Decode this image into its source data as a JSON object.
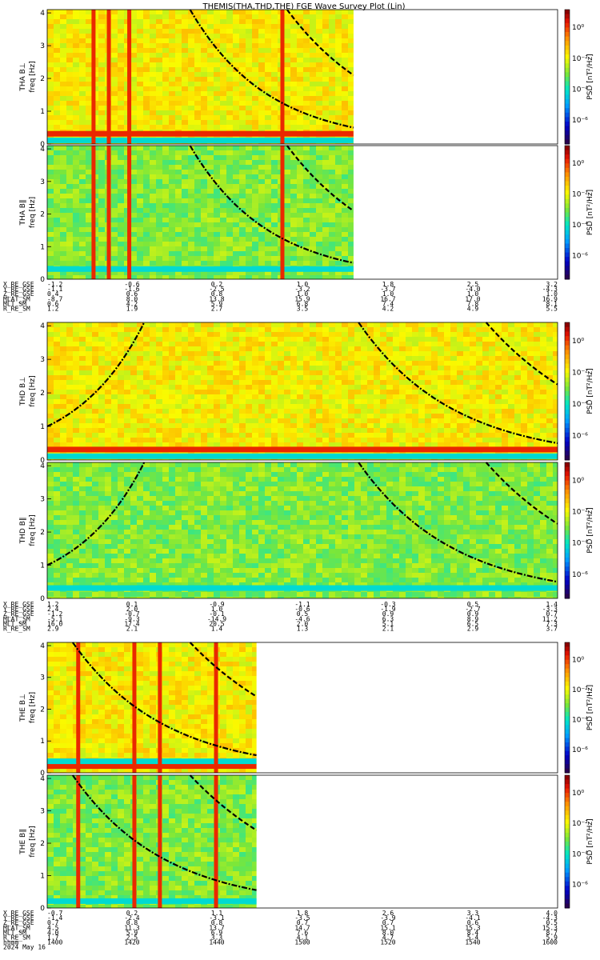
{
  "title": "THEMIS(THA,THD,THE) FGE Wave Survey Plot (Lin)",
  "footer": {
    "time_label": "hhmm",
    "date_label": "2024 May 16"
  },
  "colorbar_label": "PSD [nT²/Hz]",
  "colors": {
    "background": "#ffffff",
    "curve": "#000000",
    "noData": "#ffffff"
  },
  "panels": [
    {
      "id": "tha-bl",
      "probe": "THA",
      "ylabel": "THA B⊥",
      "yunit": "freq [Hz]",
      "yticks": [
        "0",
        "1",
        "2",
        "3",
        "4"
      ],
      "cbar_ticks": [
        "10⁰",
        "10⁻²",
        "10⁻⁴",
        "10⁻⁶"
      ],
      "ylim": [
        0,
        4.1
      ],
      "data_extent": [
        0,
        0.6
      ],
      "kind": "perp",
      "band_freqs": [
        0.3,
        0.1
      ],
      "spikes": [
        0.09,
        0.12,
        0.16,
        0.46
      ],
      "curves": [
        {
          "style": "dash-dot",
          "f0": 4.1,
          "x0": 0.28,
          "f1": 0.5,
          "x1": 0.6
        },
        {
          "style": "dash",
          "f0": 4.1,
          "x0": 0.47,
          "f1": 2.1,
          "x1": 0.6
        }
      ]
    },
    {
      "id": "tha-bp",
      "probe": "THA",
      "ylabel": "THA B∥",
      "yunit": "freq [Hz]",
      "yticks": [
        "0",
        "1",
        "2",
        "3",
        "4"
      ],
      "cbar_ticks": [
        "10⁰",
        "10⁻²",
        "10⁻⁴",
        "10⁻⁶"
      ],
      "ylim": [
        0,
        4.1
      ],
      "data_extent": [
        0,
        0.6
      ],
      "kind": "par",
      "band_freqs": [
        0.3
      ],
      "spikes": [
        0.09,
        0.12,
        0.16,
        0.46
      ],
      "curves": [
        {
          "style": "dash-dot",
          "f0": 4.1,
          "x0": 0.28,
          "f1": 0.5,
          "x1": 0.6
        },
        {
          "style": "dash",
          "f0": 4.1,
          "x0": 0.47,
          "f1": 2.1,
          "x1": 0.6
        }
      ]
    },
    {
      "id": "thd-bl",
      "probe": "THD",
      "ylabel": "THD B⊥",
      "yunit": "freq [Hz]",
      "yticks": [
        "0",
        "1",
        "2",
        "3",
        "4"
      ],
      "cbar_ticks": [
        "10⁰",
        "10⁻²",
        "10⁻⁴",
        "10⁻⁶"
      ],
      "ylim": [
        0,
        4.1
      ],
      "data_extent": [
        0,
        1.0
      ],
      "kind": "perp",
      "band_freqs": [
        0.3,
        0.1
      ],
      "spikes": [],
      "curves": [
        {
          "style": "dash-dot",
          "f0": 1.0,
          "x0": 0.0,
          "f1": 4.1,
          "x1": 0.19
        },
        {
          "style": "dash-dot",
          "f0": 4.1,
          "x0": 0.61,
          "f1": 0.5,
          "x1": 1.0
        },
        {
          "style": "dash",
          "f0": 4.1,
          "x0": 0.86,
          "f1": 2.25,
          "x1": 1.0
        }
      ]
    },
    {
      "id": "thd-bp",
      "probe": "THD",
      "ylabel": "THD B∥",
      "yunit": "freq [Hz]",
      "yticks": [
        "0",
        "1",
        "2",
        "3",
        "4"
      ],
      "cbar_ticks": [
        "10⁰",
        "10⁻²",
        "10⁻⁴",
        "10⁻⁶"
      ],
      "ylim": [
        0,
        4.1
      ],
      "data_extent": [
        0,
        1.0
      ],
      "kind": "par",
      "band_freqs": [
        0.3
      ],
      "spikes": [],
      "curves": [
        {
          "style": "dash-dot",
          "f0": 1.0,
          "x0": 0.0,
          "f1": 4.1,
          "x1": 0.19
        },
        {
          "style": "dash-dot",
          "f0": 4.1,
          "x0": 0.61,
          "f1": 0.5,
          "x1": 1.0
        },
        {
          "style": "dash",
          "f0": 4.1,
          "x0": 0.86,
          "f1": 2.25,
          "x1": 1.0
        }
      ]
    },
    {
      "id": "the-bl",
      "probe": "THE",
      "ylabel": "THE B⊥",
      "yunit": "freq [Hz]",
      "yticks": [
        "0",
        "1",
        "2",
        "3",
        "4"
      ],
      "cbar_ticks": [
        "10⁰",
        "10⁻²",
        "10⁻⁴",
        "10⁻⁶"
      ],
      "ylim": [
        0,
        4.1
      ],
      "data_extent": [
        0,
        0.41
      ],
      "kind": "perp",
      "band_freqs": [
        0.2,
        0.35
      ],
      "spikes": [
        0.06,
        0.17,
        0.22,
        0.33
      ],
      "curves": [
        {
          "style": "dash-dot",
          "f0": 4.1,
          "x0": 0.05,
          "f1": 0.55,
          "x1": 0.41
        },
        {
          "style": "dash",
          "f0": 4.1,
          "x0": 0.28,
          "f1": 2.4,
          "x1": 0.41
        }
      ]
    },
    {
      "id": "the-bp",
      "probe": "THE",
      "ylabel": "THE B∥",
      "yunit": "freq [Hz]",
      "yticks": [
        "0",
        "1",
        "2",
        "3",
        "4"
      ],
      "cbar_ticks": [
        "10⁰",
        "10⁻²",
        "10⁻⁴",
        "10⁻⁶"
      ],
      "ylim": [
        0,
        4.1
      ],
      "data_extent": [
        0,
        0.41
      ],
      "kind": "par",
      "band_freqs": [
        0.2
      ],
      "spikes": [
        0.06,
        0.17,
        0.22,
        0.33
      ],
      "curves": [
        {
          "style": "dash-dot",
          "f0": 4.1,
          "x0": 0.05,
          "f1": 0.55,
          "x1": 0.41
        },
        {
          "style": "dash",
          "f0": 4.1,
          "x0": 0.28,
          "f1": 2.4,
          "x1": 0.41
        }
      ]
    }
  ],
  "ephemeris": [
    {
      "id": "tha",
      "rows": [
        {
          "label": "X_RE_GSE",
          "values": [
            "-1.2",
            "-0.6",
            "0.2",
            "1.0",
            "1.8",
            "2.5",
            "3.2"
          ]
        },
        {
          "label": "Y_RE_GSE",
          "values": [
            "-1.1",
            "-1.6",
            "-2.5",
            "-3.2",
            "-3.7",
            "-4.0",
            "-4.3"
          ]
        },
        {
          "label": "Z_RE_GSE",
          "values": [
            "0.4",
            "0.6",
            "0.8",
            "1.0",
            "1.0",
            "1.0",
            "1.0"
          ]
        },
        {
          "label": "MLAT_SM",
          "values": [
            "-8.7",
            "8.0",
            "13.8",
            "15.9",
            "16.7",
            "17.0",
            "16.9"
          ]
        },
        {
          "label": "MLT_SM",
          "values": [
            "0.6",
            "4.2",
            "5.9",
            "6.8",
            "7.4",
            "7.8",
            "8.1"
          ]
        },
        {
          "label": "R_RE_SM",
          "values": [
            "1.2",
            "1.9",
            "2.7",
            "3.5",
            "4.2",
            "4.9",
            "5.5"
          ]
        }
      ]
    },
    {
      "id": "thd",
      "rows": [
        {
          "label": "X_RE_GSE",
          "values": [
            "1.2",
            "0.1",
            "-0.9",
            "-1.1",
            "-0.3",
            "0.5",
            "1.4"
          ]
        },
        {
          "label": "Y_RE_GSE",
          "values": [
            "2.4",
            "2.0",
            "1.0",
            "-0.6",
            "-1.9",
            "-2.7",
            "-3.3"
          ]
        },
        {
          "label": "Z_RE_GSE",
          "values": [
            "-1.2",
            "-0.7",
            "-0.1",
            "0.5",
            "0.9",
            "0.9",
            "0.7"
          ]
        },
        {
          "label": "MLAT_SM",
          "values": [
            "-5.1",
            "-9.3",
            "-14.9",
            "-4.6",
            "6.3",
            "8.9",
            "11.2"
          ]
        },
        {
          "label": "MLT_SM",
          "values": [
            "16.0",
            "17.4",
            "20.5",
            "2.0",
            "5.1",
            "6.5",
            "7.3"
          ]
        },
        {
          "label": "R_RE_SM",
          "values": [
            "2.9",
            "2.1",
            "1.4",
            "1.3",
            "2.1",
            "2.9",
            "3.7"
          ]
        }
      ]
    },
    {
      "id": "the",
      "rows": [
        {
          "label": "X_RE_GSE",
          "values": [
            "-0.7",
            "0.2",
            "1.1",
            "1.8",
            "2.6",
            "3.3",
            "4.0"
          ]
        },
        {
          "label": "Y_RE_GSE",
          "values": [
            "-1.4",
            "-2.4",
            "-3.1",
            "-3.5",
            "-3.9",
            "-4.1",
            "-4.3"
          ]
        },
        {
          "label": "Z_RE_GSE",
          "values": [
            "0.7",
            "0.8",
            "0.8",
            "0.7",
            "0.7",
            "0.6",
            "0.5"
          ]
        },
        {
          "label": "MLAT_SM",
          "values": [
            "4.5",
            "11.3",
            "13.7",
            "14.7",
            "15.1",
            "15.3",
            "15.3"
          ]
        },
        {
          "label": "MLT_SM",
          "values": [
            "4.0",
            "5.9",
            "6.9",
            "7.6",
            "8.0",
            "8.4",
            "8.7"
          ]
        },
        {
          "label": "R_RE_SM",
          "values": [
            "1.7",
            "2.5",
            "3.3",
            "4.1",
            "4.7",
            "5.4",
            "5.9"
          ]
        },
        {
          "label": "hhmm",
          "values": [
            "1400",
            "1420",
            "1440",
            "1500",
            "1520",
            "1540",
            "1600"
          ]
        }
      ]
    }
  ],
  "chart_data": [
    {
      "type": "heatmap",
      "title": "THEMIS(THA,THD,THE) FGE Wave Survey Plot (Lin)",
      "xlabel": "",
      "ylabel": "THA B⊥ freq [Hz]",
      "ylim": [
        0,
        4.1
      ],
      "x": [
        "1400",
        "1420",
        "1440",
        "1500",
        "1520",
        "1540",
        "1600"
      ],
      "colorbar": "PSD [nT²/Hz]"
    },
    {
      "type": "heatmap",
      "xlabel": "",
      "ylabel": "THA B∥ freq [Hz]",
      "ylim": [
        0,
        4.1
      ],
      "x": [
        "1400",
        "1420",
        "1440",
        "1500",
        "1520",
        "1540",
        "1600"
      ],
      "colorbar": "PSD [nT²/Hz]"
    },
    {
      "type": "heatmap",
      "xlabel": "",
      "ylabel": "THD B⊥ freq [Hz]",
      "ylim": [
        0,
        4.1
      ],
      "x": [
        "1400",
        "1420",
        "1440",
        "1500",
        "1520",
        "1540",
        "1600"
      ],
      "colorbar": "PSD [nT²/Hz]"
    },
    {
      "type": "heatmap",
      "xlabel": "",
      "ylabel": "THD B∥ freq [Hz]",
      "ylim": [
        0,
        4.1
      ],
      "x": [
        "1400",
        "1420",
        "1440",
        "1500",
        "1520",
        "1540",
        "1600"
      ],
      "colorbar": "PSD [nT²/Hz]"
    },
    {
      "type": "heatmap",
      "xlabel": "",
      "ylabel": "THE B⊥ freq [Hz]",
      "ylim": [
        0,
        4.1
      ],
      "x": [
        "1400",
        "1420",
        "1440",
        "1500",
        "1520",
        "1540",
        "1600"
      ],
      "colorbar": "PSD [nT²/Hz]"
    },
    {
      "type": "heatmap",
      "xlabel": "hhmm 2024 May 16",
      "ylabel": "THE B∥ freq [Hz]",
      "ylim": [
        0,
        4.1
      ],
      "x": [
        "1400",
        "1420",
        "1440",
        "1500",
        "1520",
        "1540",
        "1600"
      ],
      "colorbar": "PSD [nT²/Hz]"
    }
  ]
}
